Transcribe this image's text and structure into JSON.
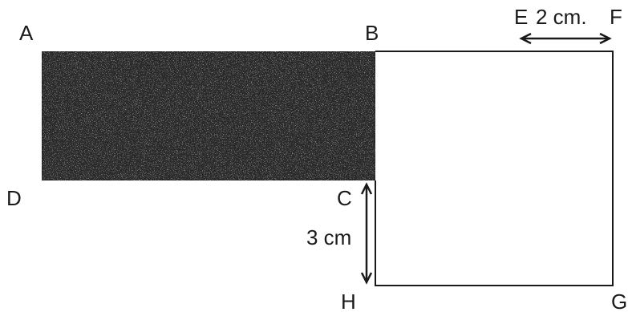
{
  "diagram": {
    "points": {
      "A": "A",
      "B": "B",
      "C": "C",
      "D": "D",
      "E": "E",
      "F": "F",
      "G": "G",
      "H": "H"
    },
    "measurements": {
      "ef": "2 cm.",
      "ch": "3 cm"
    },
    "colors": {
      "line": "#1a1a1a",
      "shaded_fill": "#2a2a2a",
      "background": "#ffffff"
    }
  }
}
